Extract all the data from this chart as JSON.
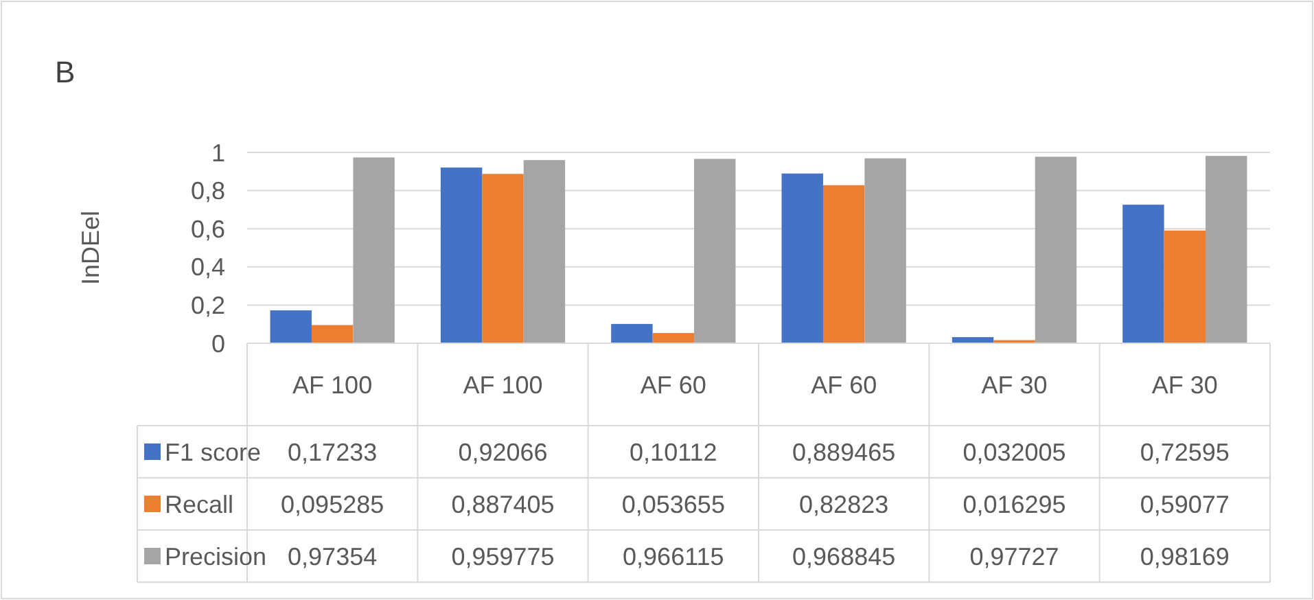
{
  "chart_data": {
    "type": "bar",
    "title": "B",
    "ylabel": "InDEel",
    "categories": [
      "AF 100",
      "AF 100",
      "AF 60",
      "AF 60",
      "AF 30",
      "AF 30"
    ],
    "series": [
      {
        "name": "F1 score",
        "color": "#4472c4",
        "values": [
          0.17233,
          0.92066,
          0.10112,
          0.889465,
          0.032005,
          0.72595
        ],
        "value_labels": [
          "0,17233",
          "0,92066",
          "0,10112",
          "0,889465",
          "0,032005",
          "0,72595"
        ]
      },
      {
        "name": "Recall",
        "color": "#ed7d31",
        "values": [
          0.095285,
          0.887405,
          0.053655,
          0.82823,
          0.016295,
          0.59077
        ],
        "value_labels": [
          "0,095285",
          "0,887405",
          "0,053655",
          "0,82823",
          "0,016295",
          "0,59077"
        ]
      },
      {
        "name": "Precision",
        "color": "#a5a5a5",
        "values": [
          0.97354,
          0.959775,
          0.966115,
          0.968845,
          0.97727,
          0.98169
        ],
        "value_labels": [
          "0,97354",
          "0,959775",
          "0,966115",
          "0,968845",
          "0,97727",
          "0,98169"
        ]
      }
    ],
    "ylim": [
      0,
      1
    ],
    "yticks": [
      0,
      {
        "value": 0.2,
        "label": "0,2"
      },
      {
        "value": 0.4,
        "label": "0,4"
      },
      {
        "value": 0.6,
        "label": "0,6"
      },
      {
        "value": 0.8,
        "label": "0,8"
      },
      1
    ],
    "grid": "y",
    "legend": "bottom"
  }
}
